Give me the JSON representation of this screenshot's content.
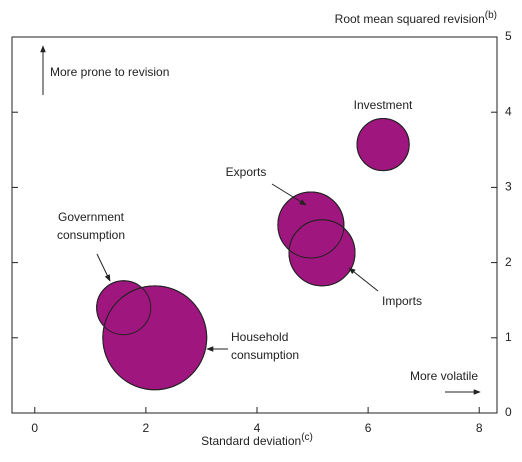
{
  "chart_data": {
    "type": "bubble",
    "x_label": "Standard deviation",
    "x_label_note": "(c)",
    "y_label": "Root mean squared revision",
    "y_label_note": "(b)",
    "annotations": [
      "More prone to revision",
      "More volatile"
    ],
    "color": "#a0167f",
    "labels": [
      [
        "Investment"
      ],
      [
        "Exports"
      ],
      [
        "Imports"
      ],
      [
        "Government",
        "consumption"
      ],
      [
        "Household",
        "consumption"
      ]
    ],
    "x": [
      6.27,
      4.97,
      5.17,
      1.6,
      2.16
    ],
    "y": [
      3.57,
      2.5,
      2.13,
      1.4,
      1.0
    ],
    "sizes": [
      6.8,
      10.9,
      10.9,
      7.3,
      27
    ],
    "xlim": [
      -0.41,
      8.32
    ],
    "ylim": [
      0,
      5
    ],
    "xticks": [
      0,
      2,
      4,
      6,
      8
    ],
    "yticks": [
      0,
      1,
      2,
      3,
      4,
      5
    ]
  }
}
